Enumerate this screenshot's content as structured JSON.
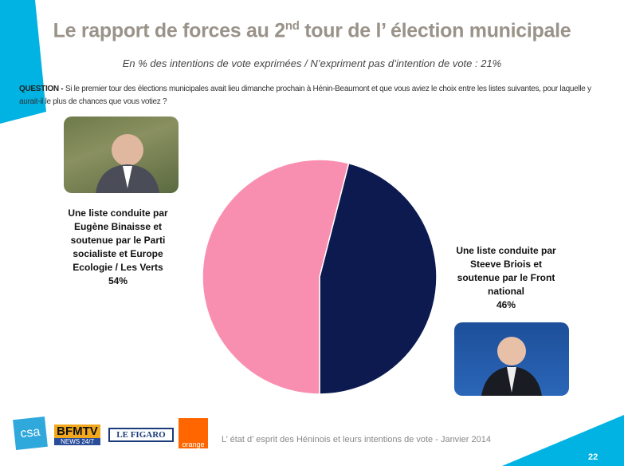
{
  "header": {
    "title_pre": "Le rapport de forces au 2",
    "title_sup": "nd",
    "title_post": " tour de l’ élection municipale",
    "subtitle": "En % des intentions de vote exprimées / N’expriment pas d’intention de vote : 21%",
    "question_label": "QUESTION -",
    "question_text": " Si le premier tour des élections municipales avait lieu dimanche prochain à Hénin-Beaumont et que vous aviez le choix entre les listes suivantes, pour laquelle y aurait-il le plus de chances que vous votiez ?"
  },
  "chart_data": {
    "type": "pie",
    "categories": [
      "Une liste conduite par Steeve Briois et soutenue par le Front national",
      "Une liste conduite par Eugène Binaisse et soutenue par le Parti socialiste et Europe Ecologie / Les Verts"
    ],
    "values": [
      46,
      54
    ],
    "colors": [
      "#0c1a4f",
      "#f98fb0"
    ],
    "labels": {
      "left_lines": [
        "Une liste conduite par",
        "Eugène Binaisse et",
        "soutenue par le Parti",
        "socialiste et Europe",
        "Ecologie / Les Verts"
      ],
      "left_value": "54%",
      "right_lines": [
        "Une liste conduite par",
        "Steeve Briois et",
        "soutenue par le Front",
        "national"
      ],
      "right_value": "46%"
    }
  },
  "footer": {
    "logos": [
      "csa",
      "BFMTV",
      "NEWS 24/7",
      "LE FIGARO",
      "orange"
    ],
    "text": "L’ état d’ esprit des Héninois et leurs intentions de vote - Janvier 2014",
    "page": "22"
  },
  "colors": {
    "accent": "#00b3e3",
    "title": "#9a938a"
  }
}
